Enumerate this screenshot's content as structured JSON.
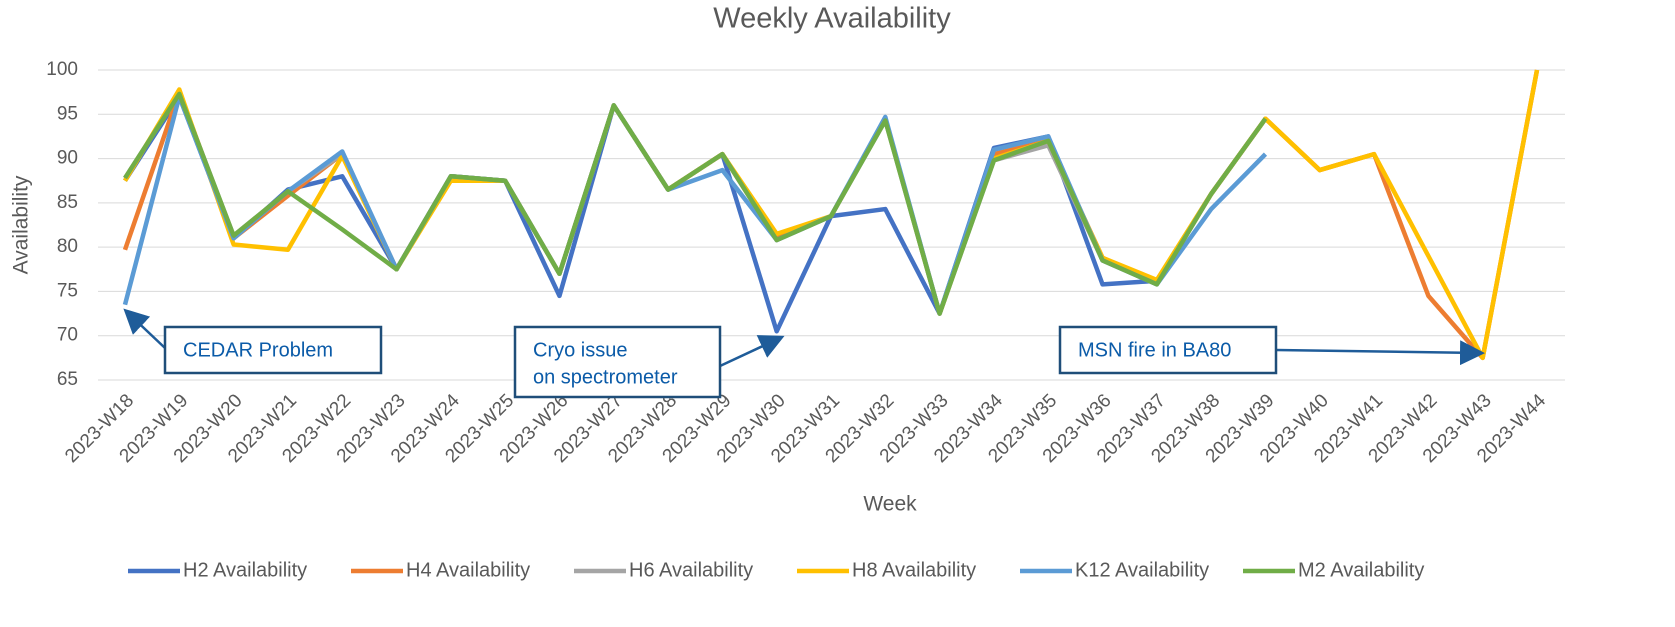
{
  "chart_data": {
    "type": "line",
    "title": "Weekly Availability",
    "x_label": "Week",
    "y_label": "Availability",
    "categories": [
      "2023-W18",
      "2023-W19",
      "2023-W20",
      "2023-W21",
      "2023-W22",
      "2023-W23",
      "2023-W24",
      "2023-W25",
      "2023-W26",
      "2023-W27",
      "2023-W28",
      "2023-W29",
      "2023-W30",
      "2023-W31",
      "2023-W32",
      "2023-W33",
      "2023-W34",
      "2023-W35",
      "2023-W36",
      "2023-W37",
      "2023-W38",
      "2023-W39",
      "2023-W40",
      "2023-W41",
      "2023-W42",
      "2023-W43",
      "2023-W44"
    ],
    "series": [
      {
        "name": "H2 Availability",
        "color": "#4472c4",
        "values": [
          87.5,
          97,
          81,
          86.5,
          88,
          77.5,
          88,
          87.5,
          74.5,
          96,
          86.5,
          90.5,
          70.5,
          83.5,
          84.3,
          72.5,
          91.2,
          92.5,
          75.8,
          76.2,
          86,
          94.5,
          null,
          null,
          null,
          null,
          null
        ]
      },
      {
        "name": "H4 Availability",
        "color": "#ed7d31",
        "values": [
          79.7,
          97.5,
          81,
          85.8,
          90.5,
          77.5,
          88,
          87.5,
          77,
          96,
          86.5,
          90.5,
          81,
          83.5,
          94.5,
          72.5,
          90.5,
          92,
          78.8,
          76,
          86,
          94.5,
          88.7,
          90.5,
          74.5,
          67.5,
          100
        ]
      },
      {
        "name": "H6 Availability",
        "color": "#a5a5a5",
        "values": [
          87.8,
          97.3,
          81.3,
          86.3,
          90.5,
          77.5,
          88,
          87.5,
          77,
          96,
          86.5,
          90.5,
          80.8,
          83.5,
          94.3,
          72.5,
          89.8,
          91.5,
          78.5,
          75.8,
          86,
          94.5,
          null,
          null,
          null,
          null,
          null
        ]
      },
      {
        "name": "H8 Availability",
        "color": "#ffc000",
        "values": [
          87.5,
          97.8,
          80.3,
          79.7,
          90.3,
          77.5,
          87.5,
          87.5,
          77,
          96,
          86.5,
          90.5,
          81.5,
          83.5,
          94.5,
          72.5,
          90,
          92,
          78.8,
          76.3,
          86,
          94.5,
          88.7,
          90.5,
          79,
          67.5,
          100
        ]
      },
      {
        "name": "K12 Availability",
        "color": "#5b9bd5",
        "values": [
          73.5,
          97,
          81,
          86.3,
          90.8,
          77.5,
          88,
          87.5,
          77,
          96,
          86.5,
          88.7,
          80.8,
          83.5,
          94.7,
          72.5,
          91,
          92.5,
          78.5,
          75.8,
          84.3,
          90.5,
          null,
          null,
          null,
          null,
          null
        ]
      },
      {
        "name": "M2 Availability",
        "color": "#70ad47",
        "values": [
          87.8,
          97.3,
          81.3,
          86.3,
          82,
          77.5,
          88,
          87.5,
          77,
          96,
          86.5,
          90.5,
          80.8,
          83.5,
          94.3,
          72.5,
          89.8,
          92,
          78.5,
          75.8,
          86,
          94.5,
          null,
          null,
          null,
          null,
          null
        ]
      }
    ],
    "ylim": [
      65,
      100
    ],
    "yticks": [
      65,
      70,
      75,
      80,
      85,
      90,
      95,
      100
    ],
    "grid": true,
    "legend": "bottom",
    "annotations": [
      {
        "lines": [
          "CEDAR Problem"
        ]
      },
      {
        "lines": [
          "Cryo issue",
          "on spectrometer"
        ]
      },
      {
        "lines": [
          "MSN fire in BA80"
        ]
      }
    ]
  }
}
